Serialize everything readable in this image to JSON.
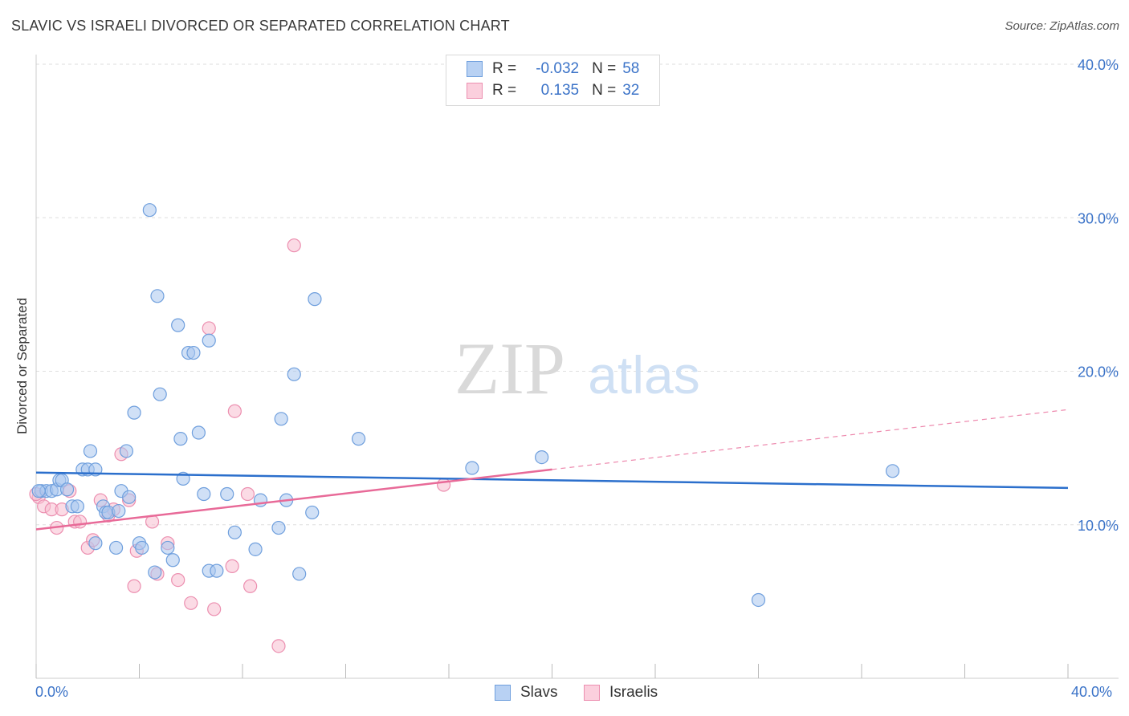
{
  "title": "SLAVIC VS ISRAELI DIVORCED OR SEPARATED CORRELATION CHART",
  "source": "Source: ZipAtlas.com",
  "watermark": {
    "zip": "ZIP",
    "atlas": "atlas"
  },
  "legend": {
    "rows": [
      {
        "r_label": "R =",
        "r_value": "-0.032",
        "n_label": "N =",
        "n_value": "58"
      },
      {
        "r_label": "R =",
        "r_value": "0.135",
        "n_label": "N =",
        "n_value": "32"
      }
    ]
  },
  "bottom_legend": {
    "slavs": "Slavs",
    "israelis": "Israelis"
  },
  "colors": {
    "slavs_fill": "#a9c6ef",
    "slavs_stroke": "#6f9fdd",
    "slavs_line": "#2b6fcc",
    "israelis_fill": "#f8bdd0",
    "israelis_stroke": "#ec8fb0",
    "israelis_line": "#e86a98",
    "tick_label": "#3b73c8",
    "grid": "#dedede"
  },
  "chart_data": {
    "type": "scatter",
    "title": "SLAVIC VS ISRAELI DIVORCED OR SEPARATED CORRELATION CHART",
    "xlabel": "",
    "ylabel": "Divorced or Separated",
    "xlim": [
      0,
      40
    ],
    "ylim": [
      0,
      40
    ],
    "x_tick_labels": [
      "0.0%",
      "40.0%"
    ],
    "y_ticks": [
      10,
      20,
      30,
      40
    ],
    "y_tick_labels": [
      "10.0%",
      "20.0%",
      "30.0%",
      "40.0%"
    ],
    "series": [
      {
        "name": "Slavs",
        "r": -0.032,
        "n": 58,
        "trend": {
          "x0": 0,
          "y0": 13.4,
          "x1": 40,
          "y1": 12.4
        },
        "points": [
          [
            0.2,
            12.2
          ],
          [
            0.4,
            12.2
          ],
          [
            0.6,
            12.2
          ],
          [
            0.8,
            12.3
          ],
          [
            0.9,
            12.9
          ],
          [
            1.0,
            12.9
          ],
          [
            1.2,
            12.3
          ],
          [
            1.4,
            11.2
          ],
          [
            1.6,
            11.2
          ],
          [
            1.8,
            13.6
          ],
          [
            2.0,
            13.6
          ],
          [
            2.1,
            14.8
          ],
          [
            2.3,
            13.6
          ],
          [
            2.3,
            8.8
          ],
          [
            2.6,
            11.2
          ],
          [
            2.7,
            10.8
          ],
          [
            2.8,
            10.8
          ],
          [
            3.1,
            8.5
          ],
          [
            3.2,
            10.9
          ],
          [
            3.3,
            12.2
          ],
          [
            3.5,
            14.8
          ],
          [
            3.6,
            11.8
          ],
          [
            3.8,
            17.3
          ],
          [
            4.0,
            8.8
          ],
          [
            4.1,
            8.5
          ],
          [
            4.4,
            30.5
          ],
          [
            4.6,
            6.9
          ],
          [
            4.7,
            24.9
          ],
          [
            4.8,
            18.5
          ],
          [
            5.1,
            8.5
          ],
          [
            5.3,
            7.7
          ],
          [
            5.5,
            23.0
          ],
          [
            5.6,
            15.6
          ],
          [
            5.7,
            13.0
          ],
          [
            5.9,
            21.2
          ],
          [
            6.1,
            21.2
          ],
          [
            6.3,
            16.0
          ],
          [
            6.5,
            12.0
          ],
          [
            6.7,
            22.0
          ],
          [
            6.7,
            7.0
          ],
          [
            7.0,
            7.0
          ],
          [
            7.4,
            12.0
          ],
          [
            7.7,
            9.5
          ],
          [
            8.5,
            8.4
          ],
          [
            8.7,
            11.6
          ],
          [
            9.4,
            9.8
          ],
          [
            9.5,
            16.9
          ],
          [
            9.7,
            11.6
          ],
          [
            10.0,
            19.8
          ],
          [
            10.2,
            6.8
          ],
          [
            10.7,
            10.8
          ],
          [
            10.8,
            24.7
          ],
          [
            12.5,
            15.6
          ],
          [
            16.9,
            13.7
          ],
          [
            19.6,
            14.4
          ],
          [
            28.0,
            5.1
          ],
          [
            33.2,
            13.5
          ],
          [
            0.1,
            12.2
          ]
        ]
      },
      {
        "name": "Israelis",
        "r": 0.135,
        "n": 32,
        "trend": {
          "x0": 0,
          "y0": 9.7,
          "x1": 40,
          "y1": 17.5,
          "solid_until_x": 20
        },
        "points": [
          [
            0.1,
            11.8
          ],
          [
            0.3,
            11.2
          ],
          [
            0.6,
            11.0
          ],
          [
            0.8,
            9.8
          ],
          [
            1.0,
            11.0
          ],
          [
            1.3,
            12.2
          ],
          [
            1.5,
            10.2
          ],
          [
            1.7,
            10.2
          ],
          [
            2.0,
            8.5
          ],
          [
            2.2,
            9.0
          ],
          [
            2.5,
            11.6
          ],
          [
            2.8,
            10.6
          ],
          [
            3.0,
            11.0
          ],
          [
            3.3,
            14.6
          ],
          [
            3.6,
            11.6
          ],
          [
            3.8,
            6.0
          ],
          [
            3.9,
            8.3
          ],
          [
            4.5,
            10.2
          ],
          [
            4.7,
            6.8
          ],
          [
            5.1,
            8.8
          ],
          [
            5.5,
            6.4
          ],
          [
            6.0,
            4.9
          ],
          [
            6.7,
            22.8
          ],
          [
            6.9,
            4.5
          ],
          [
            7.6,
            7.3
          ],
          [
            7.7,
            17.4
          ],
          [
            8.2,
            12.0
          ],
          [
            8.3,
            6.0
          ],
          [
            9.4,
            2.1
          ],
          [
            10.0,
            28.2
          ],
          [
            15.8,
            12.6
          ],
          [
            0.0,
            12.0
          ]
        ]
      }
    ]
  }
}
